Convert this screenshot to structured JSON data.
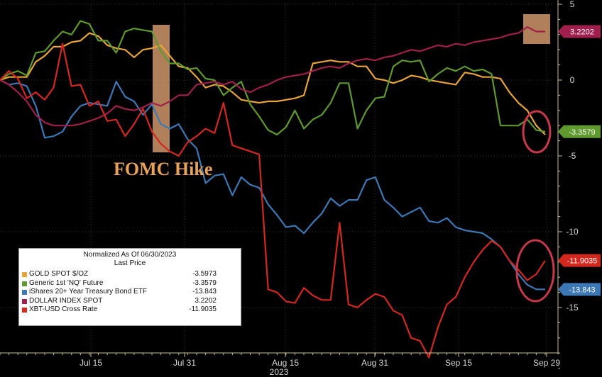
{
  "chart_data": {
    "type": "line",
    "x_ticks": [
      "Jul 15",
      "Jul 31",
      "Aug 15",
      "Aug 31",
      "Sep 15",
      "Sep 29"
    ],
    "x_year_label": "2023",
    "y_ticks": [
      5,
      0,
      -5,
      -10,
      -15
    ],
    "ylim": [
      -19.5,
      5
    ],
    "annotation": "FOMC Hike",
    "legend": {
      "title": "Normalized As Of 06/30/2023",
      "subtitle": "Last Price",
      "placement": "bottom-left"
    },
    "series": [
      {
        "name": "GOLD SPOT $/OZ",
        "color": "#e8a33a",
        "last": "-3.5973",
        "tag_label": "",
        "values": [
          0,
          0.2,
          0.2,
          0.2,
          1.2,
          1.6,
          2.2,
          2.2,
          2.5,
          2.6,
          3.1,
          2.9,
          2.3,
          2.1,
          2.0,
          1.5,
          2.0,
          2.1,
          2.3,
          1.6,
          0.9,
          0.8,
          0.2,
          -0.5,
          -0.3,
          -0.4,
          -0.8,
          -1.3,
          -1.4,
          -1.5,
          -1.4,
          -1.4,
          -1.3,
          -1.2,
          -1.0,
          1.1,
          1.2,
          1.3,
          1.2,
          1.2,
          0.9,
          0.9,
          0.1,
          0.0,
          -0.2,
          0.0,
          0.3,
          0.2,
          0.0,
          -0.1,
          -0.2,
          -0.3,
          0.5,
          0.4,
          0.2,
          0.2,
          0.1,
          -0.8,
          -1.5,
          -2.0,
          -3.0,
          -3.6
        ]
      },
      {
        "name": "Generic 1st 'NQ' Future",
        "color": "#5e9a2e",
        "last": "-3.3579",
        "tag_label": "-3.3579",
        "values": [
          0,
          0.4,
          0.6,
          0.3,
          1.8,
          1.9,
          2.6,
          3.2,
          3.0,
          3.9,
          3.7,
          2.6,
          2.6,
          1.8,
          3.2,
          3.4,
          3.3,
          3.2,
          1.9,
          1.1,
          1.1,
          0.7,
          0.8,
          0.1,
          0.0,
          -1.0,
          -0.5,
          -0.1,
          -1.6,
          -2.4,
          -3.3,
          -3.6,
          -3.1,
          -2.0,
          -3.2,
          -2.6,
          -2.3,
          -1.5,
          -0.2,
          -0.2,
          -3.2,
          -2.0,
          -1.2,
          -1.1,
          0.9,
          1.3,
          1.2,
          1.3,
          -0.1,
          0.4,
          0.8,
          0.6,
          0.9,
          0.6,
          0.7,
          0.4,
          -3.0,
          -3.0,
          -3.0,
          -2.6,
          -3.3,
          -3.4
        ]
      },
      {
        "name": "iShares 20+ Year Treasury Bond ETF",
        "color": "#3b78b5",
        "last": "-13.843",
        "tag_label": "-13.843",
        "values": [
          0,
          -0.3,
          -0.2,
          -0.4,
          -1.7,
          -3.8,
          -3.7,
          -3.4,
          -2.4,
          -1.7,
          -1.5,
          -1.6,
          -1.7,
          -0.1,
          -1.1,
          -1.4,
          -2.3,
          -1.6,
          -2.9,
          -3.2,
          -2.9,
          -3.9,
          -4.5,
          -6.8,
          -6.3,
          -6.2,
          -7.6,
          -6.4,
          -6.9,
          -7.1,
          -8.2,
          -8.9,
          -9.7,
          -9.6,
          -10.1,
          -9.4,
          -8.8,
          -7.8,
          -8.3,
          -7.9,
          -7.9,
          -6.6,
          -6.4,
          -7.9,
          -8.4,
          -9.0,
          -8.7,
          -8.4,
          -9.3,
          -9.4,
          -9.1,
          -9.7,
          -9.9,
          -10.0,
          -10.1,
          -10.5,
          -11.0,
          -11.9,
          -12.8,
          -13.5,
          -13.8,
          -13.8
        ]
      },
      {
        "name": "DOLLAR INDEX SPOT",
        "color": "#a11f4d",
        "last": "3.2202",
        "tag_label": "3.2202",
        "values": [
          0,
          -0.3,
          -0.8,
          -1.4,
          -2.3,
          -2.8,
          -3.0,
          -3.0,
          -3.0,
          -2.9,
          -2.7,
          -2.5,
          -2.2,
          -1.7,
          -1.9,
          -2.0,
          -1.8,
          -1.5,
          -1.7,
          -1.4,
          -1.0,
          -1.0,
          -0.3,
          -0.2,
          -0.1,
          -0.3,
          -0.1,
          -0.6,
          -0.8,
          -0.5,
          -0.3,
          0.0,
          0.2,
          0.3,
          0.4,
          0.6,
          0.8,
          0.9,
          0.8,
          1.1,
          1.3,
          1.4,
          1.3,
          1.5,
          1.6,
          1.8,
          2.0,
          1.9,
          2.1,
          2.3,
          2.2,
          2.4,
          2.3,
          2.5,
          2.6,
          2.7,
          2.8,
          3.0,
          3.1,
          3.5,
          3.2,
          3.2
        ]
      },
      {
        "name": "XBT-USD Cross Rate",
        "color": "#d4271e",
        "last": "-11.9035",
        "tag_label": "-11.9035",
        "values": [
          0,
          0.6,
          0.1,
          -1.2,
          -0.8,
          -1.3,
          -0.5,
          2.4,
          -0.4,
          -0.3,
          -1.7,
          -1.4,
          -2.7,
          -2.6,
          -3.7,
          -2.9,
          -1.9,
          -3.4,
          -4.2,
          -4.7,
          -5.0,
          -4.1,
          -3.7,
          -3.2,
          -3.5,
          -1.5,
          -4.3,
          -4.5,
          -4.7,
          -4.9,
          -13.8,
          -14.0,
          -14.6,
          -14.7,
          -13.7,
          -14.2,
          -14.5,
          -14.5,
          -9.4,
          -14.8,
          -15.0,
          -14.5,
          -14.1,
          -14.3,
          -15.2,
          -15.5,
          -17.0,
          -17.2,
          -18.3,
          -16.3,
          -14.8,
          -14.3,
          -13.0,
          -12.0,
          -11.2,
          -10.6,
          -11.0,
          -11.9,
          -12.5,
          -13.2,
          -12.8,
          -11.9
        ]
      }
    ]
  }
}
